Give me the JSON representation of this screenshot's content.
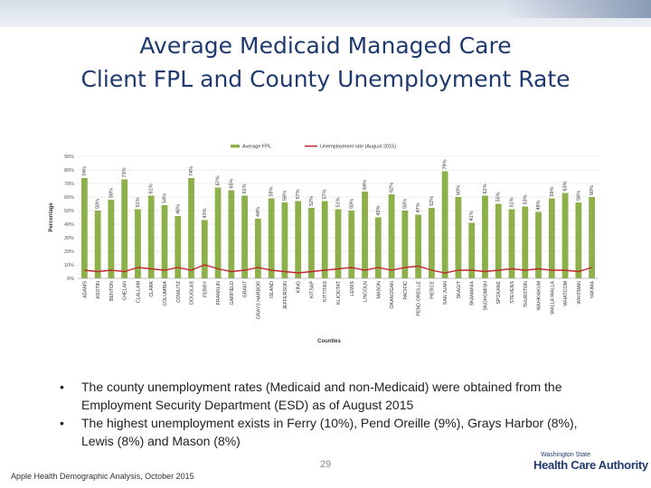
{
  "title": {
    "line1": "Average Medicaid Managed Care",
    "line2": "Client FPL and County Unemployment Rate"
  },
  "chart_data": {
    "type": "bar",
    "ylabel": "Percentage",
    "xlabel": "Counties",
    "ylim": [
      0,
      90
    ],
    "yticks": [
      "0%",
      "10%",
      "20%",
      "30%",
      "40%",
      "50%",
      "60%",
      "70%",
      "80%",
      "90%"
    ],
    "grid": true,
    "legend_position": "top",
    "categories": [
      "ADAMS",
      "ASOTIN",
      "BENTON",
      "CHELAN",
      "CLALLAM",
      "CLARK",
      "COLUMBIA",
      "COWLITZ",
      "DOUGLAS",
      "FERRY",
      "FRANKLIN",
      "GARFIELD",
      "GRANT",
      "GRAYS HARBOR",
      "ISLAND",
      "JEFFERSON",
      "KING",
      "KITSAP",
      "KITTITAS",
      "KLICKITAT",
      "LEWIS",
      "LINCOLN",
      "MASON",
      "OKANOGAN",
      "PACIFIC",
      "PEND OREILLE",
      "PIERCE",
      "SAN JUAN",
      "SKAGIT",
      "SKAMANIA",
      "SNOHOMISH",
      "SPOKANE",
      "STEVENS",
      "THURSTON",
      "WAHKIAKUM",
      "WALLA WALLA",
      "WHATCOM",
      "WHITMAN",
      "YAKIMA"
    ],
    "series": [
      {
        "name": "Average FPL",
        "type": "bar",
        "color": "#8db04a",
        "values": [
          74,
          50,
          58,
          73,
          51,
          61,
          54,
          46,
          74,
          43,
          67,
          65,
          61,
          44,
          59,
          56,
          57,
          52,
          57,
          51,
          50,
          64,
          45,
          62,
          50,
          47,
          52,
          79,
          60,
          41,
          61,
          55,
          51,
          53,
          49,
          59,
          63,
          56,
          60
        ],
        "labels": [
          "74%",
          "50%",
          "58%",
          "73%",
          "51%",
          "61%",
          "54%",
          "46%",
          "74%",
          "43%",
          "67%",
          "65%",
          "61%",
          "44%",
          "59%",
          "56%",
          "57%",
          "52%",
          "57%",
          "51%",
          "50%",
          "64%",
          "45%",
          "62%",
          "50%",
          "47%",
          "52%",
          "79%",
          "60%",
          "41%",
          "61%",
          "55%",
          "51%",
          "53%",
          "49%",
          "59%",
          "63%",
          "56%",
          "60%"
        ]
      },
      {
        "name": "Unemployment rate (August 2015)",
        "type": "line",
        "color": "#c0272d",
        "values": [
          6,
          5,
          6,
          5,
          8,
          7,
          6,
          8,
          6,
          10,
          7,
          5,
          6,
          8,
          6,
          5,
          4,
          5,
          6,
          7,
          8,
          6,
          8,
          6,
          8,
          9,
          6,
          4,
          6,
          6,
          5,
          6,
          7,
          6,
          7,
          6,
          6,
          5,
          8
        ]
      }
    ]
  },
  "bullets": [
    "The county unemployment rates (Medicaid and non-Medicaid) were obtained from the Employment Security Department (ESD) as of August 2015",
    "The highest unemployment exists in Ferry (10%), Pend Oreille (9%), Grays Harbor (8%), Lewis (8%) and Mason (8%)"
  ],
  "bullet_marker": "•",
  "page_number": "29",
  "footer": "Apple Health Demographic Analysis, October 2015",
  "logo": {
    "line1": "Washington State",
    "line2": "Health Care Authority"
  }
}
